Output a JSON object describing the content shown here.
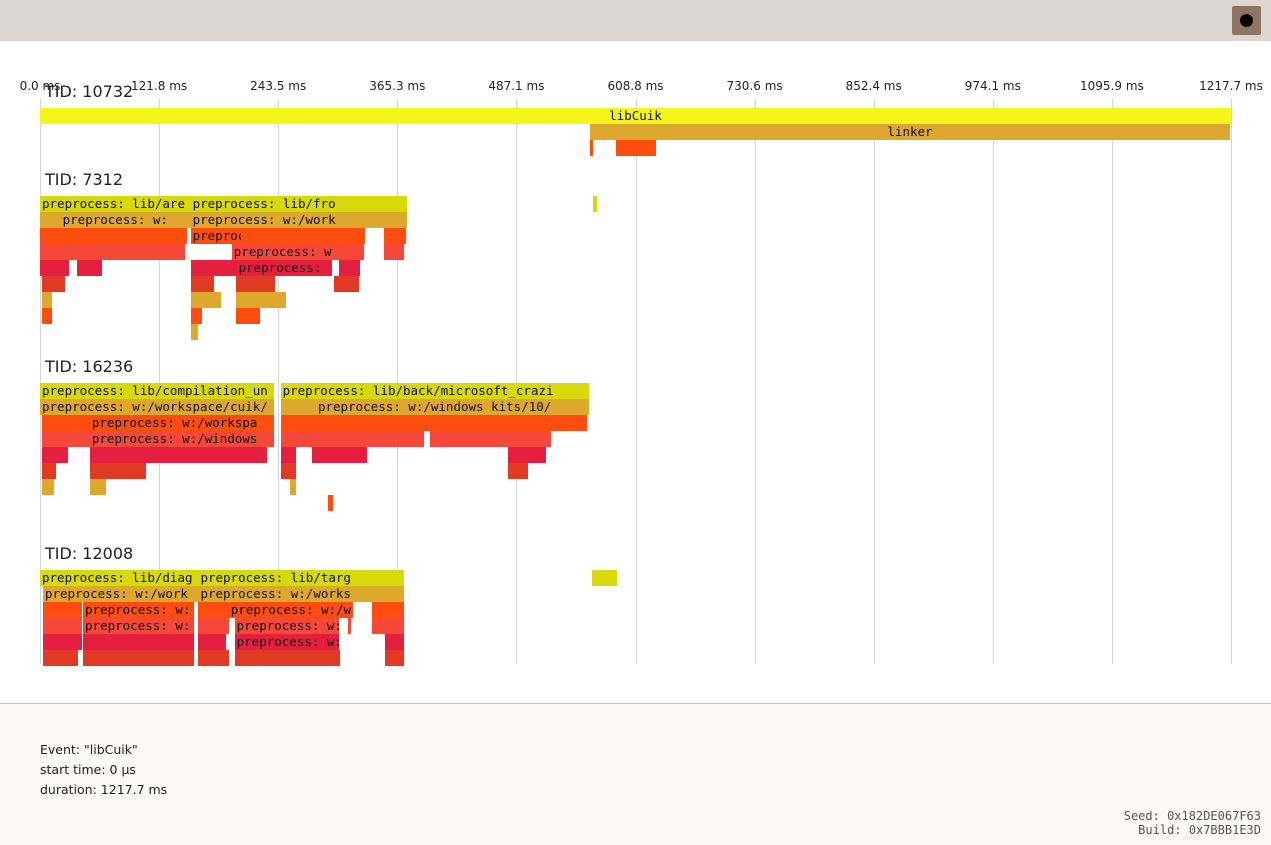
{
  "toolbar": {
    "record_icon": "record-dot-icon"
  },
  "timeline": {
    "ticks": [
      "0.0 ms",
      "121.8 ms",
      "243.5 ms",
      "365.3 ms",
      "487.1 ms",
      "608.8 ms",
      "730.6 ms",
      "852.4 ms",
      "974.1 ms",
      "1095.9 ms",
      "1217.7 ms"
    ],
    "total_ms": 1217.7,
    "colors": {
      "yellow": "#f5f51a",
      "olive": "#d7d90a",
      "gold": "#dea72d",
      "orange": "#ff4c0f",
      "red_orange": "#f5473a",
      "crimson": "#e51f3f",
      "dark_red": "#e03a24"
    },
    "threads": [
      {
        "label": "TID: 10732",
        "events": [
          {
            "name": "libCuik",
            "start_ms": 0,
            "dur_ms": 1217.7,
            "depth": 0,
            "color": "#f5f51a",
            "center": true
          },
          {
            "name": "linker",
            "start_ms": 562,
            "dur_ms": 655,
            "depth": 1,
            "color": "#dea72d",
            "center": true
          },
          {
            "name": "",
            "start_ms": 562,
            "dur_ms": 3,
            "depth": 2,
            "color": "#ff4c0f"
          },
          {
            "name": "",
            "start_ms": 589,
            "dur_ms": 41,
            "depth": 2,
            "color": "#ff4c0f"
          }
        ]
      },
      {
        "label": "TID: 7312",
        "events": [
          {
            "name": "preprocess: lib/are",
            "start_ms": 0,
            "dur_ms": 154,
            "depth": 0,
            "color": "#d7d90a"
          },
          {
            "name": "preprocess: lib/fro",
            "start_ms": 154,
            "dur_ms": 221,
            "depth": 0,
            "color": "#d7d90a"
          },
          {
            "name": "",
            "start_ms": 565,
            "dur_ms": 4,
            "depth": 0,
            "color": "#d7d90a"
          },
          {
            "name": "preprocess: w:",
            "start_ms": 0,
            "dur_ms": 154,
            "depth": 1,
            "color": "#dea72d",
            "center": true
          },
          {
            "name": "preprocess: w:/work",
            "start_ms": 154,
            "dur_ms": 221,
            "depth": 1,
            "color": "#dea72d"
          },
          {
            "name": "",
            "start_ms": 0,
            "dur_ms": 150,
            "depth": 2,
            "color": "#ff4c0f"
          },
          {
            "name": "preprocess: w:",
            "start_ms": 154,
            "dur_ms": 52,
            "depth": 2,
            "color": "#ff4c0f"
          },
          {
            "name": "",
            "start_ms": 206,
            "dur_ms": 126,
            "depth": 2,
            "color": "#ff4c0f"
          },
          {
            "name": "",
            "start_ms": 352,
            "dur_ms": 22,
            "depth": 2,
            "color": "#ff4c0f"
          },
          {
            "name": "",
            "start_ms": 0,
            "dur_ms": 148,
            "depth": 3,
            "color": "#f5473a"
          },
          {
            "name": "preprocess: w",
            "start_ms": 196,
            "dur_ms": 135,
            "depth": 3,
            "color": "#f5473a"
          },
          {
            "name": "",
            "start_ms": 352,
            "dur_ms": 20,
            "depth": 3,
            "color": "#f5473a"
          },
          {
            "name": "",
            "start_ms": 0,
            "dur_ms": 30,
            "depth": 4,
            "color": "#e51f3f"
          },
          {
            "name": "",
            "start_ms": 38,
            "dur_ms": 25,
            "depth": 4,
            "color": "#e51f3f"
          },
          {
            "name": "",
            "start_ms": 154,
            "dur_ms": 47,
            "depth": 4,
            "color": "#e51f3f"
          },
          {
            "name": "preprocess:",
            "start_ms": 201,
            "dur_ms": 98,
            "depth": 4,
            "color": "#e51f3f"
          },
          {
            "name": "",
            "start_ms": 306,
            "dur_ms": 21,
            "depth": 4,
            "color": "#e51f3f"
          },
          {
            "name": "",
            "start_ms": 2,
            "dur_ms": 24,
            "depth": 5,
            "color": "#e03a24"
          },
          {
            "name": "",
            "start_ms": 154,
            "dur_ms": 24,
            "depth": 5,
            "color": "#e03a24"
          },
          {
            "name": "",
            "start_ms": 200,
            "dur_ms": 40,
            "depth": 5,
            "color": "#e03a24"
          },
          {
            "name": "",
            "start_ms": 301,
            "dur_ms": 25,
            "depth": 5,
            "color": "#e03a24"
          },
          {
            "name": "",
            "start_ms": 2,
            "dur_ms": 10,
            "depth": 6,
            "color": "#dea72d"
          },
          {
            "name": "",
            "start_ms": 154,
            "dur_ms": 31,
            "depth": 6,
            "color": "#dea72d"
          },
          {
            "name": "",
            "start_ms": 200,
            "dur_ms": 52,
            "depth": 6,
            "color": "#dea72d"
          },
          {
            "name": "",
            "start_ms": 2,
            "dur_ms": 10,
            "depth": 7,
            "color": "#ff4c0f"
          },
          {
            "name": "",
            "start_ms": 154,
            "dur_ms": 12,
            "depth": 7,
            "color": "#ff4c0f"
          },
          {
            "name": "",
            "start_ms": 200,
            "dur_ms": 25,
            "depth": 7,
            "color": "#ff4c0f"
          },
          {
            "name": "",
            "start_ms": 154,
            "dur_ms": 8,
            "depth": 8,
            "color": "#dea72d"
          }
        ]
      },
      {
        "label": "TID: 16236",
        "events": [
          {
            "name": "preprocess: lib/compilation_un",
            "start_ms": 0,
            "dur_ms": 239,
            "depth": 0,
            "color": "#d7d90a"
          },
          {
            "name": "preprocess: lib/back/microsoft_crazi",
            "start_ms": 246,
            "dur_ms": 315,
            "depth": 0,
            "color": "#d7d90a"
          },
          {
            "name": "preprocess: w:/workspace/cuik/",
            "start_ms": 0,
            "dur_ms": 239,
            "depth": 1,
            "color": "#dea72d"
          },
          {
            "name": "preprocess: w:/windows kits/10/",
            "start_ms": 246,
            "dur_ms": 315,
            "depth": 1,
            "color": "#dea72d",
            "center": true
          },
          {
            "name": "",
            "start_ms": 2,
            "dur_ms": 49,
            "depth": 2,
            "color": "#ff4c0f"
          },
          {
            "name": "preprocess: w:/workspa",
            "start_ms": 51,
            "dur_ms": 188,
            "depth": 2,
            "color": "#ff4c0f"
          },
          {
            "name": "",
            "start_ms": 246,
            "dur_ms": 32,
            "depth": 2,
            "color": "#ff4c0f"
          },
          {
            "name": "",
            "start_ms": 278,
            "dur_ms": 281,
            "depth": 2,
            "color": "#ff4c0f"
          },
          {
            "name": "",
            "start_ms": 2,
            "dur_ms": 49,
            "depth": 3,
            "color": "#f5473a"
          },
          {
            "name": "preprocess: w:/windows",
            "start_ms": 51,
            "dur_ms": 188,
            "depth": 3,
            "color": "#f5473a"
          },
          {
            "name": "",
            "start_ms": 246,
            "dur_ms": 32,
            "depth": 3,
            "color": "#f5473a"
          },
          {
            "name": "",
            "start_ms": 278,
            "dur_ms": 115,
            "depth": 3,
            "color": "#f5473a"
          },
          {
            "name": "",
            "start_ms": 399,
            "dur_ms": 123,
            "depth": 3,
            "color": "#f5473a"
          },
          {
            "name": "",
            "start_ms": 2,
            "dur_ms": 27,
            "depth": 4,
            "color": "#e51f3f"
          },
          {
            "name": "",
            "start_ms": 51,
            "dur_ms": 181,
            "depth": 4,
            "color": "#e51f3f"
          },
          {
            "name": "",
            "start_ms": 246,
            "dur_ms": 16,
            "depth": 4,
            "color": "#e51f3f"
          },
          {
            "name": "",
            "start_ms": 278,
            "dur_ms": 56,
            "depth": 4,
            "color": "#e51f3f"
          },
          {
            "name": "",
            "start_ms": 479,
            "dur_ms": 38,
            "depth": 4,
            "color": "#e51f3f"
          },
          {
            "name": "",
            "start_ms": 2,
            "dur_ms": 14,
            "depth": 5,
            "color": "#e03a24"
          },
          {
            "name": "",
            "start_ms": 51,
            "dur_ms": 57,
            "depth": 5,
            "color": "#e03a24"
          },
          {
            "name": "",
            "start_ms": 246,
            "dur_ms": 16,
            "depth": 5,
            "color": "#e03a24"
          },
          {
            "name": "",
            "start_ms": 479,
            "dur_ms": 20,
            "depth": 5,
            "color": "#e03a24"
          },
          {
            "name": "",
            "start_ms": 2,
            "dur_ms": 12,
            "depth": 6,
            "color": "#dea72d"
          },
          {
            "name": "",
            "start_ms": 51,
            "dur_ms": 16,
            "depth": 6,
            "color": "#dea72d"
          },
          {
            "name": "",
            "start_ms": 256,
            "dur_ms": 6,
            "depth": 6,
            "color": "#dea72d"
          },
          {
            "name": "",
            "start_ms": 294,
            "dur_ms": 6,
            "depth": 7,
            "color": "#ff4c0f"
          }
        ]
      },
      {
        "label": "TID: 12008",
        "events": [
          {
            "name": "preprocess: lib/diag",
            "start_ms": 0,
            "dur_ms": 162,
            "depth": 0,
            "color": "#d7d90a"
          },
          {
            "name": "preprocess: lib/targ",
            "start_ms": 162,
            "dur_ms": 210,
            "depth": 0,
            "color": "#d7d90a"
          },
          {
            "name": "",
            "start_ms": 564,
            "dur_ms": 26,
            "depth": 0,
            "color": "#d7d90a"
          },
          {
            "name": "preprocess: w:/work",
            "start_ms": 3,
            "dur_ms": 159,
            "depth": 1,
            "color": "#dea72d"
          },
          {
            "name": "preprocess: w:/works",
            "start_ms": 162,
            "dur_ms": 210,
            "depth": 1,
            "color": "#dea72d"
          },
          {
            "name": "",
            "start_ms": 3,
            "dur_ms": 40,
            "depth": 2,
            "color": "#ff4c0f"
          },
          {
            "name": "preprocess: w:",
            "start_ms": 44,
            "dur_ms": 113,
            "depth": 2,
            "color": "#ff4c0f"
          },
          {
            "name": "",
            "start_ms": 162,
            "dur_ms": 31,
            "depth": 2,
            "color": "#ff4c0f"
          },
          {
            "name": "preprocess: w:/w",
            "start_ms": 193,
            "dur_ms": 127,
            "depth": 2,
            "color": "#ff4c0f"
          },
          {
            "name": "",
            "start_ms": 339,
            "dur_ms": 33,
            "depth": 2,
            "color": "#ff4c0f"
          },
          {
            "name": "",
            "start_ms": 3,
            "dur_ms": 40,
            "depth": 3,
            "color": "#f5473a"
          },
          {
            "name": "preprocess: w:",
            "start_ms": 44,
            "dur_ms": 113,
            "depth": 3,
            "color": "#f5473a"
          },
          {
            "name": "",
            "start_ms": 162,
            "dur_ms": 31,
            "depth": 3,
            "color": "#f5473a"
          },
          {
            "name": "preprocess: w:",
            "start_ms": 199,
            "dur_ms": 107,
            "depth": 3,
            "color": "#f5473a"
          },
          {
            "name": "",
            "start_ms": 315,
            "dur_ms": 3,
            "depth": 3,
            "color": "#f5473a"
          },
          {
            "name": "",
            "start_ms": 339,
            "dur_ms": 33,
            "depth": 3,
            "color": "#f5473a"
          },
          {
            "name": "",
            "start_ms": 3,
            "dur_ms": 40,
            "depth": 4,
            "color": "#e51f3f"
          },
          {
            "name": "",
            "start_ms": 44,
            "dur_ms": 113,
            "depth": 4,
            "color": "#e51f3f"
          },
          {
            "name": "",
            "start_ms": 162,
            "dur_ms": 28,
            "depth": 4,
            "color": "#e51f3f"
          },
          {
            "name": "preprocess: w:",
            "start_ms": 199,
            "dur_ms": 107,
            "depth": 4,
            "color": "#e51f3f"
          },
          {
            "name": "",
            "start_ms": 353,
            "dur_ms": 19,
            "depth": 4,
            "color": "#e51f3f"
          },
          {
            "name": "",
            "start_ms": 3,
            "dur_ms": 36,
            "depth": 5,
            "color": "#e03a24"
          },
          {
            "name": "",
            "start_ms": 44,
            "dur_ms": 113,
            "depth": 5,
            "color": "#e03a24"
          },
          {
            "name": "",
            "start_ms": 162,
            "dur_ms": 31,
            "depth": 5,
            "color": "#e03a24"
          },
          {
            "name": "",
            "start_ms": 199,
            "dur_ms": 108,
            "depth": 5,
            "color": "#e03a24"
          },
          {
            "name": "",
            "start_ms": 353,
            "dur_ms": 19,
            "depth": 5,
            "color": "#e03a24"
          }
        ]
      }
    ]
  },
  "details": {
    "event": "Event: \"libCuik\"",
    "start_time": "start time: 0 µs",
    "duration": "duration: 1217.7 ms"
  },
  "footer": {
    "seed": "Seed: 0x182DE067F63",
    "build": "Build: 0x7BBB1E3D"
  }
}
